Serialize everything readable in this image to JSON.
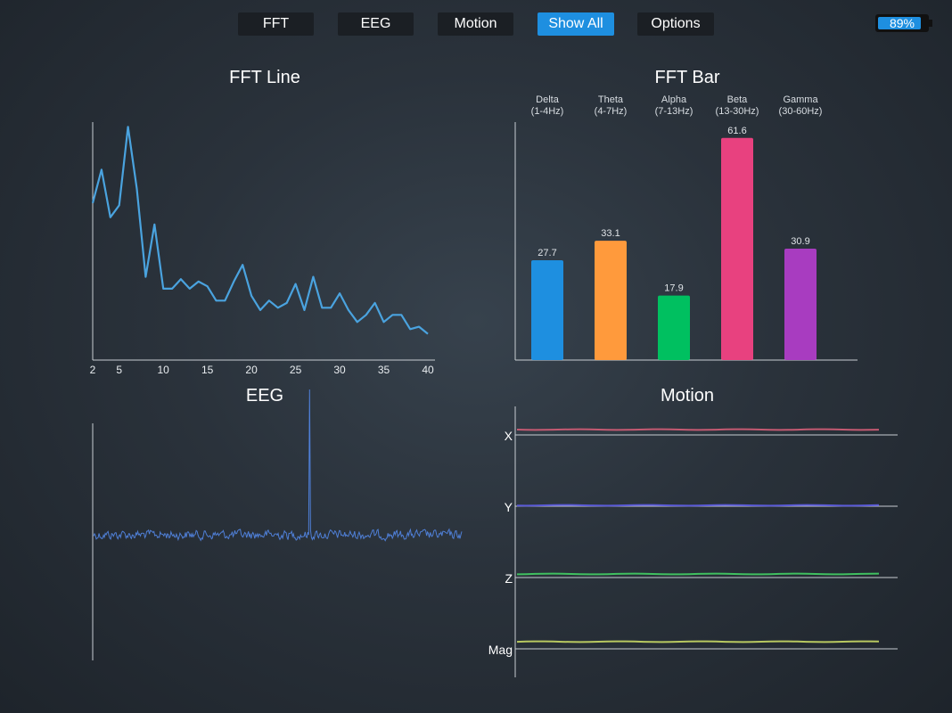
{
  "tabs": [
    {
      "label": "FFT",
      "active": false
    },
    {
      "label": "EEG",
      "active": false
    },
    {
      "label": "Motion",
      "active": false
    },
    {
      "label": "Show All",
      "active": true
    },
    {
      "label": "Options",
      "active": false
    }
  ],
  "battery": {
    "label": "89%",
    "level": 0.89,
    "color": "#1e8fe0"
  },
  "panels": {
    "fft_line_title": "FFT Line",
    "fft_bar_title": "FFT Bar",
    "eeg_title": "EEG",
    "motion_title": "Motion"
  },
  "chart_data": [
    {
      "type": "line",
      "title": "FFT Line",
      "x": [
        2,
        3,
        4,
        5,
        6,
        7,
        8,
        9,
        10,
        11,
        12,
        13,
        14,
        15,
        16,
        17,
        18,
        19,
        20,
        21,
        22,
        23,
        24,
        25,
        26,
        27,
        28,
        29,
        30,
        31,
        32,
        33,
        34,
        35,
        36,
        37,
        38,
        39,
        40
      ],
      "y": [
        66,
        80,
        60,
        65,
        98,
        72,
        35,
        57,
        30,
        30,
        34,
        30,
        33,
        31,
        25,
        25,
        33,
        40,
        27,
        21,
        25,
        22,
        24,
        32,
        21,
        35,
        22,
        22,
        28,
        21,
        16,
        19,
        24,
        16,
        19,
        19,
        13,
        14,
        11
      ],
      "xticks": [
        2,
        5,
        10,
        15,
        20,
        25,
        30,
        35,
        40
      ],
      "xlim": [
        2,
        40
      ],
      "ylim": [
        0,
        100
      ],
      "color": "#4aa3df"
    },
    {
      "type": "bar",
      "title": "FFT Bar",
      "categories": [
        "Delta\n(1-4Hz)",
        "Theta\n(4-7Hz)",
        "Alpha\n(7-13Hz)",
        "Beta\n(13-30Hz)",
        "Gamma\n(30-60Hz)"
      ],
      "category_lines": [
        [
          "Delta",
          "(1-4Hz)"
        ],
        [
          "Theta",
          "(4-7Hz)"
        ],
        [
          "Alpha",
          "(7-13Hz)"
        ],
        [
          "Beta",
          "(13-30Hz)"
        ],
        [
          "Gamma",
          "(30-60Hz)"
        ]
      ],
      "values": [
        27.7,
        33.1,
        17.9,
        61.6,
        30.9
      ],
      "value_labels": [
        "27.7",
        "33.1",
        "17.9",
        "61.6",
        "30.9"
      ],
      "colors": [
        "#1e8fe0",
        "#ff9a3c",
        "#00c060",
        "#e8417f",
        "#a83cc0"
      ],
      "ylim": [
        0,
        66
      ]
    },
    {
      "type": "line",
      "title": "EEG",
      "color": "#4f7fd6",
      "samples": 410,
      "baseline": 0,
      "spike_index": 240,
      "spike_value": 45,
      "ylim": [
        -50,
        50
      ]
    },
    {
      "type": "line",
      "title": "Motion",
      "channels": [
        {
          "label": "X",
          "color": "#c45a72",
          "offset": 0.4
        },
        {
          "label": "Y",
          "color": "#5a5ad6",
          "offset": -0.6
        },
        {
          "label": "Z",
          "color": "#40c060",
          "offset": 0.0
        },
        {
          "label": "Mag",
          "color": "#b8c860",
          "offset": 0.8
        }
      ]
    }
  ]
}
